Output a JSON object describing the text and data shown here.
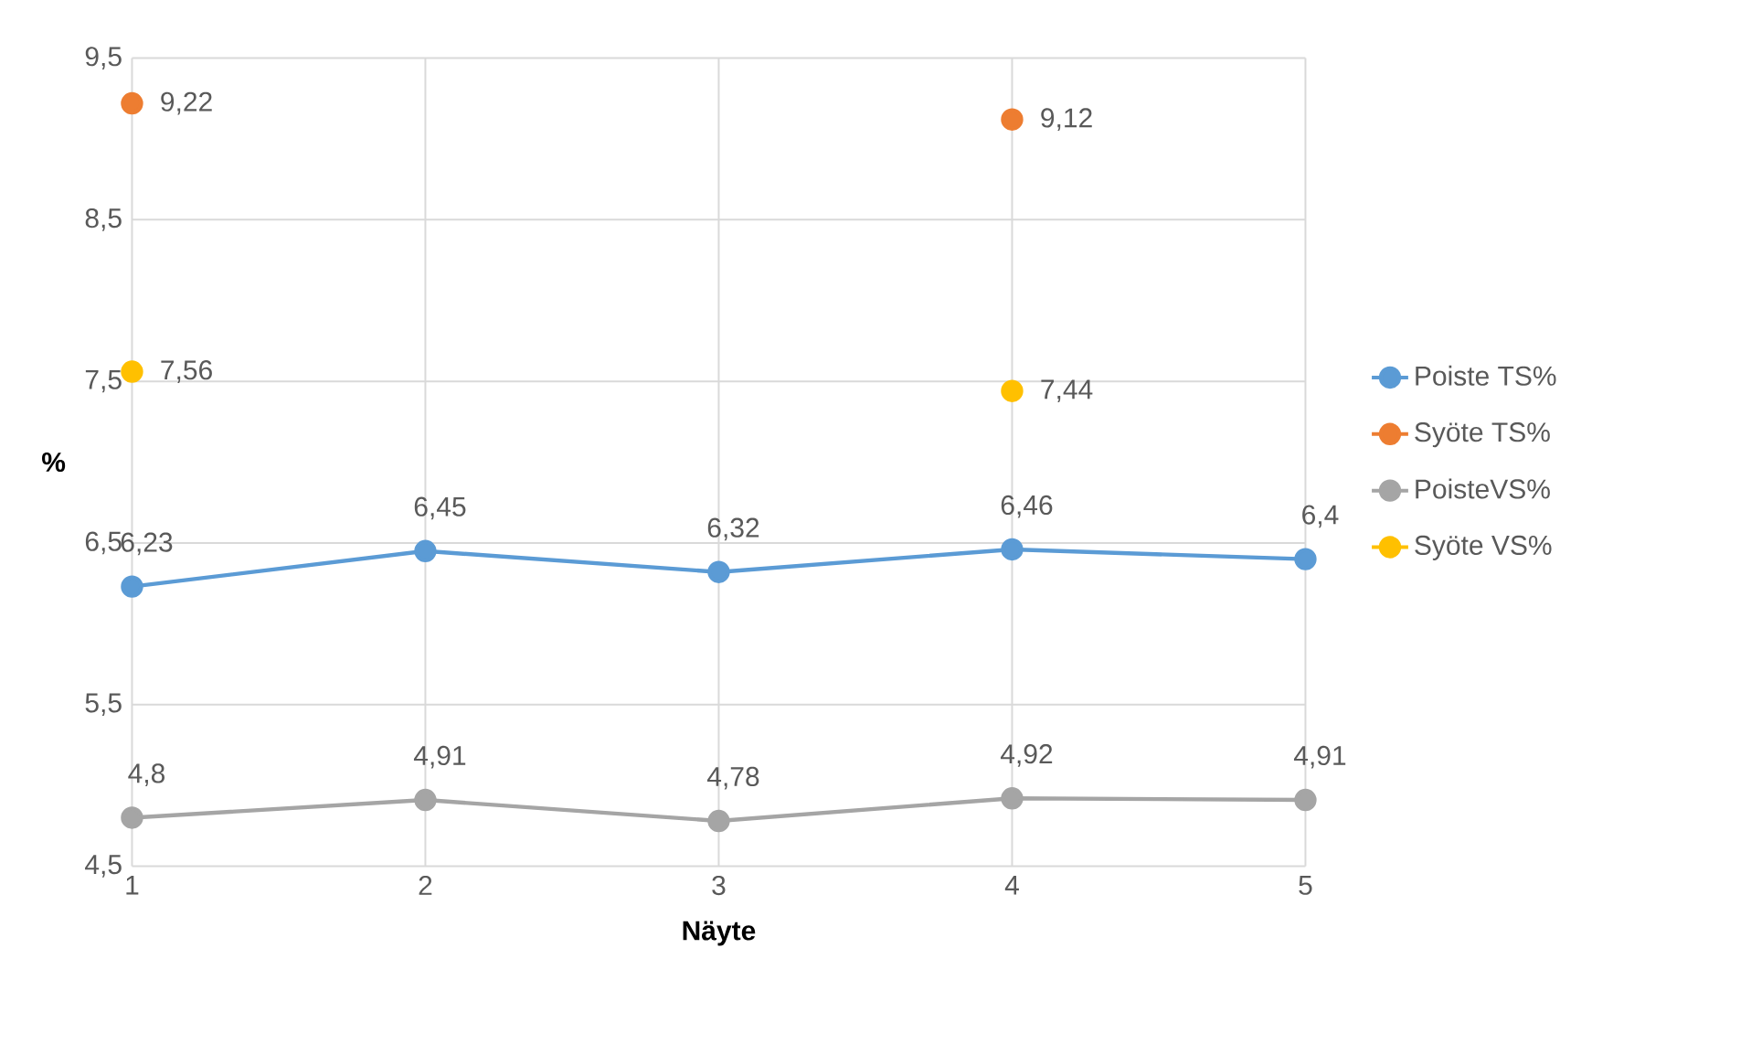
{
  "chart_data": {
    "type": "line",
    "xlabel": "Näyte",
    "ylabel": "%",
    "x": [
      1,
      2,
      3,
      4,
      5
    ],
    "xlim": [
      1,
      5
    ],
    "xticks": [
      1,
      2,
      3,
      4,
      5
    ],
    "ylim": [
      4.5,
      9.5
    ],
    "yticks": [
      {
        "value": 4.5,
        "label": "4,5"
      },
      {
        "value": 5.5,
        "label": "5,5"
      },
      {
        "value": 6.5,
        "label": "6,5"
      },
      {
        "value": 7.5,
        "label": "7,5"
      },
      {
        "value": 8.5,
        "label": "8,5"
      },
      {
        "value": 9.5,
        "label": "9,5"
      }
    ],
    "grid": true,
    "legend": "right",
    "marker": "circle",
    "line_style": "solid",
    "series": [
      {
        "name": "Poiste TS%",
        "color": "#5b9bd5",
        "values": [
          6.23,
          6.45,
          6.32,
          6.46,
          6.4
        ],
        "value_labels": [
          "6,23",
          "6,45",
          "6,32",
          "6,46",
          "6,4"
        ]
      },
      {
        "name": "Syöte TS%",
        "type": "scatter",
        "color": "#ed7d31",
        "values": [
          9.22,
          null,
          null,
          9.12,
          null
        ],
        "value_labels": [
          "9,22",
          null,
          null,
          "9,12",
          null
        ]
      },
      {
        "name": "PoisteVS%",
        "color": "#a5a5a5",
        "values": [
          4.8,
          4.91,
          4.78,
          4.92,
          4.91
        ],
        "value_labels": [
          "4,8",
          "4,91",
          "4,78",
          "4,92",
          "4,91"
        ]
      },
      {
        "name": "Syöte VS%",
        "type": "scatter",
        "color": "#ffc000",
        "values": [
          7.56,
          null,
          null,
          7.44,
          null
        ],
        "value_labels": [
          "7,56",
          null,
          null,
          "7,44",
          null
        ]
      }
    ]
  }
}
